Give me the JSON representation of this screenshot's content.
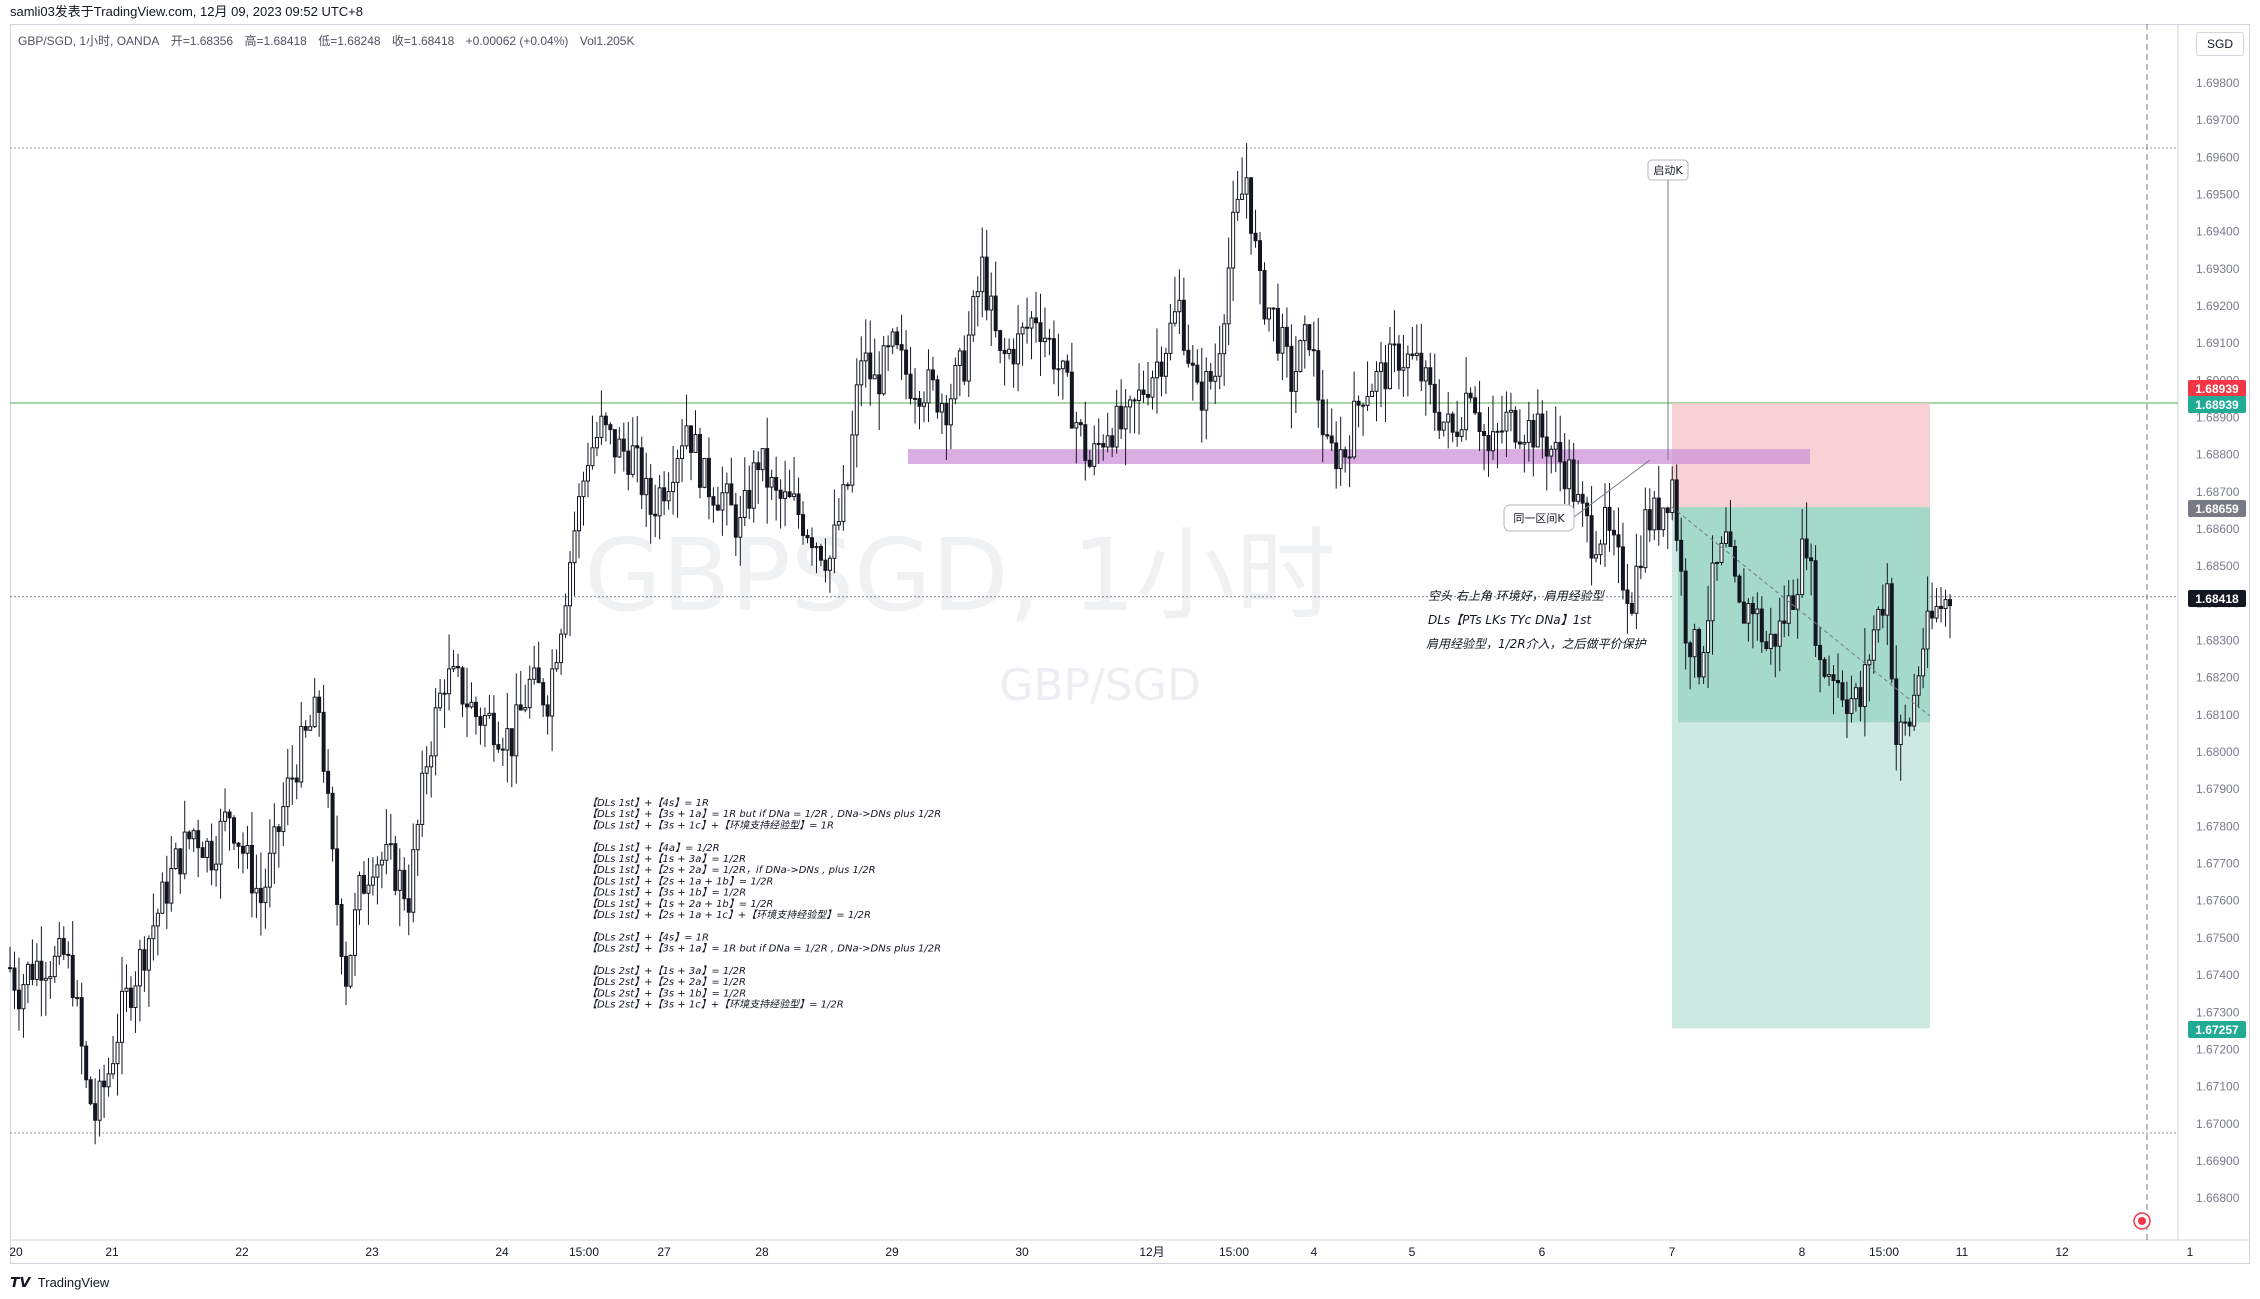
{
  "header": {
    "title": "samli03发表于TradingView.com, 12月 09, 2023 09:52 UTC+8"
  },
  "legend": {
    "symbol": "GBP/SGD, 1小时, OANDA",
    "open": "开=1.68356",
    "high": "高=1.68418",
    "low": "低=1.68248",
    "close": "收=1.68418",
    "change": "+0.00062 (+0.04%)",
    "volume": "Vol1.205K"
  },
  "currency": "SGD",
  "watermark": {
    "main": "GBPSGD, 1小时",
    "sub": "GBP/SGD"
  },
  "footer": {
    "logo_text": "TradingView"
  },
  "chart_data": {
    "type": "candlestick",
    "y_ticks": [
      "1.69800",
      "1.69700",
      "1.69600",
      "1.69500",
      "1.69400",
      "1.69300",
      "1.69200",
      "1.69100",
      "1.69000",
      "1.68900",
      "1.68800",
      "1.68700",
      "1.68600",
      "1.68500",
      "1.68400",
      "1.68300",
      "1.68200",
      "1.68100",
      "1.68000",
      "1.67900",
      "1.67800",
      "1.67700",
      "1.67600",
      "1.67500",
      "1.67400",
      "1.67300",
      "1.67200",
      "1.67100",
      "1.67000",
      "1.66900",
      "1.66800"
    ],
    "x_labels": [
      "20",
      "21",
      "22",
      "23",
      "24",
      "15:00",
      "27",
      "28",
      "29",
      "30",
      "12月",
      "15:00",
      "4",
      "5",
      "6",
      "7",
      "8",
      "15:00",
      "11",
      "12",
      "1"
    ],
    "ylim": [
      1.6676,
      1.6994
    ],
    "price_labels": [
      {
        "value": "1.68939",
        "color": "#f23645"
      },
      {
        "value": "1.68939",
        "color": "#22ab94"
      },
      {
        "value": "1.68659",
        "color": "#787b86"
      },
      {
        "value": "1.68418",
        "color": "#131722"
      },
      {
        "value": "1.67257",
        "color": "#22ab94"
      }
    ],
    "close_series_anchors": [
      [
        0,
        1.6742
      ],
      [
        4,
        1.6736
      ],
      [
        8,
        1.6741
      ],
      [
        14,
        1.6744
      ],
      [
        20,
        1.6743
      ],
      [
        24,
        1.6745
      ],
      [
        28,
        1.6739
      ],
      [
        34,
        1.671
      ],
      [
        38,
        1.6702
      ],
      [
        44,
        1.6714
      ],
      [
        50,
        1.673
      ],
      [
        58,
        1.6744
      ],
      [
        66,
        1.6757
      ],
      [
        74,
        1.677
      ],
      [
        82,
        1.6779
      ],
      [
        90,
        1.6773
      ],
      [
        98,
        1.6784
      ],
      [
        106,
        1.677
      ],
      [
        112,
        1.676
      ],
      [
        118,
        1.6774
      ],
      [
        124,
        1.679
      ],
      [
        130,
        1.6801
      ],
      [
        138,
        1.6812
      ],
      [
        144,
        1.677
      ],
      [
        150,
        1.674
      ],
      [
        156,
        1.6762
      ],
      [
        162,
        1.6772
      ],
      [
        170,
        1.677
      ],
      [
        178,
        1.6761
      ],
      [
        186,
        1.6798
      ],
      [
        194,
        1.682
      ],
      [
        200,
        1.6818
      ],
      [
        208,
        1.681
      ],
      [
        216,
        1.6808
      ],
      [
        224,
        1.6803
      ],
      [
        232,
        1.6818
      ],
      [
        240,
        1.6815
      ],
      [
        246,
        1.6836
      ],
      [
        252,
        1.686
      ],
      [
        258,
        1.688
      ],
      [
        264,
        1.6887
      ],
      [
        270,
        1.6882
      ],
      [
        278,
        1.688
      ],
      [
        286,
        1.6865
      ],
      [
        294,
        1.6875
      ],
      [
        302,
        1.6889
      ],
      [
        310,
        1.6873
      ],
      [
        318,
        1.6869
      ],
      [
        326,
        1.686
      ],
      [
        334,
        1.6879
      ],
      [
        342,
        1.6868
      ],
      [
        350,
        1.6866
      ],
      [
        358,
        1.6859
      ],
      [
        366,
        1.6852
      ],
      [
        374,
        1.6872
      ],
      [
        380,
        1.6907
      ],
      [
        386,
        1.6899
      ],
      [
        394,
        1.6908
      ],
      [
        402,
        1.69
      ],
      [
        410,
        1.6898
      ],
      [
        418,
        1.6894
      ],
      [
        426,
        1.6905
      ],
      [
        434,
        1.693
      ],
      [
        442,
        1.6905
      ],
      [
        450,
        1.691
      ],
      [
        458,
        1.6918
      ],
      [
        466,
        1.6907
      ],
      [
        474,
        1.6893
      ],
      [
        482,
        1.6877
      ],
      [
        490,
        1.6888
      ],
      [
        498,
        1.6887
      ],
      [
        506,
        1.6898
      ],
      [
        514,
        1.6907
      ],
      [
        522,
        1.692
      ],
      [
        530,
        1.6895
      ],
      [
        538,
        1.6902
      ],
      [
        546,
        1.694
      ],
      [
        552,
        1.6955
      ],
      [
        558,
        1.6924
      ],
      [
        564,
        1.6917
      ],
      [
        572,
        1.69
      ],
      [
        580,
        1.6913
      ],
      [
        588,
        1.688
      ],
      [
        596,
        1.6881
      ],
      [
        604,
        1.6898
      ],
      [
        612,
        1.6901
      ],
      [
        620,
        1.6907
      ],
      [
        628,
        1.6904
      ],
      [
        636,
        1.6893
      ],
      [
        644,
        1.6885
      ],
      [
        652,
        1.69
      ],
      [
        660,
        1.688
      ],
      [
        668,
        1.6889
      ],
      [
        676,
        1.6888
      ],
      [
        684,
        1.6885
      ],
      [
        690,
        1.688
      ],
      [
        696,
        1.6875
      ],
      [
        700,
        1.6866
      ],
      [
        706,
        1.6858
      ],
      [
        712,
        1.686
      ],
      [
        718,
        1.685
      ],
      [
        724,
        1.6842
      ],
      [
        730,
        1.6862
      ],
      [
        736,
        1.6864
      ],
      [
        742,
        1.6873
      ],
      [
        748,
        1.6834
      ],
      [
        754,
        1.6824
      ],
      [
        760,
        1.6845
      ],
      [
        766,
        1.6856
      ],
      [
        772,
        1.6837
      ],
      [
        778,
        1.684
      ],
      [
        784,
        1.6828
      ],
      [
        790,
        1.6833
      ],
      [
        796,
        1.6843
      ],
      [
        802,
        1.6858
      ],
      [
        808,
        1.6823
      ],
      [
        814,
        1.6822
      ],
      [
        820,
        1.6815
      ],
      [
        826,
        1.6813
      ],
      [
        832,
        1.6833
      ],
      [
        838,
        1.6845
      ],
      [
        842,
        1.6803
      ],
      [
        848,
        1.6808
      ],
      [
        854,
        1.6829
      ],
      [
        860,
        1.6838
      ],
      [
        866,
        1.6842
      ]
    ],
    "annotations": [
      {
        "text": "启动K"
      },
      {
        "text": "同一区间K"
      },
      {
        "text": "空头 右上角 环境好，肩用经验型"
      },
      {
        "text": "DLs【PTs LKs TYc DNa】1st"
      },
      {
        "text": "肩用经验型，1/2R介入，之后做平价保护"
      }
    ],
    "notes": [
      "【DLs 1st】+【4s】= 1R",
      "【DLs 1st】+【3s + 1a】= 1R but if DNa = 1/2R , DNa->DNs plus 1/2R",
      "【DLs 1st】+【3s + 1c】+【环境支持经验型】= 1R",
      "",
      "【DLs 1st】+【4a】= 1/2R",
      "【DLs 1st】+【1s + 3a】= 1/2R",
      "【DLs 1st】+【2s + 2a】= 1/2R，if DNa->DNs , plus 1/2R",
      "【DLs 1st】+【2s + 1a + 1b】= 1/2R",
      "【DLs 1st】+【3s + 1b】= 1/2R",
      "【DLs 1st】+【1s + 2a + 1b】= 1/2R",
      "【DLs 1st】+【2s + 1a + 1c】+【环境支持经验型】= 1/2R",
      "",
      "【DLs 2st】+【4s】= 1R",
      "【DLs 2st】+【3s + 1a】= 1R but if DNa = 1/2R , DNa->DNs plus 1/2R",
      "",
      "【DLs 2st】+【1s + 3a】= 1/2R",
      "【DLs 2st】+【2s + 2a】= 1/2R",
      "【DLs 2st】+【3s + 1b】= 1/2R",
      "【DLs 2st】+【3s + 1c】+【环境支持经验型】= 1/2R"
    ],
    "levels": {
      "green_line": 1.68939,
      "last_price": 1.68418,
      "dotted_top": 1.69625,
      "dotted_bottom": 1.66975,
      "zone_top": 1.68815,
      "zone_bottom": 1.68775,
      "stop": 1.68939,
      "entry": 1.68659,
      "target": 1.67257,
      "partial_target": 1.6808
    },
    "colors": {
      "up": "#131722",
      "down": "#131722",
      "zone": "#ce93d8",
      "stop_fill": "#f7c9cc",
      "profit_fill": "#a5d9ca",
      "profit_fill_light": "#cdeae2",
      "grid": "#e0e3eb"
    }
  }
}
